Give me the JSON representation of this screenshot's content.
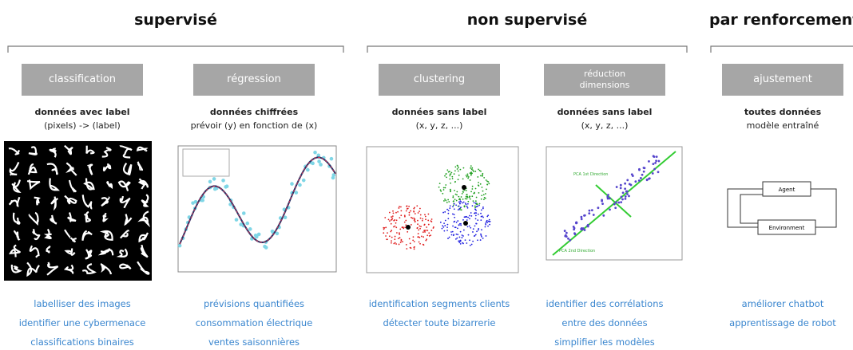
{
  "groups": [
    {
      "title": "supervisé",
      "columns": [
        {
          "button": "classification",
          "heading": "données avec label",
          "subheading": "(pixels) -> (label)",
          "uses": [
            "labelliser des images",
            "identifier une cybermenace",
            "classifications binaires"
          ]
        },
        {
          "button": "régression",
          "heading": "données chiffrées",
          "subheading": "prévoir (y) en fonction de (x)",
          "uses": [
            "prévisions quantifiées",
            "consommation électrique",
            "ventes saisonnières"
          ]
        }
      ]
    },
    {
      "title": "non supervisé",
      "columns": [
        {
          "button": "clustering",
          "heading": "données sans label",
          "subheading": "(x, y, z, ...)",
          "uses": [
            "identification segments clients",
            "détecter toute bizarrerie"
          ]
        },
        {
          "button": "réduction dimensions",
          "heading": "données sans label",
          "subheading": "(x, y, z, ...)",
          "uses": [
            "identifier des corrélations",
            "entre des données",
            "simplifier les modèles"
          ]
        }
      ]
    },
    {
      "title": "par renforcement",
      "columns": [
        {
          "button": "ajustement",
          "heading": "toutes données",
          "subheading": "modèle entraîné",
          "uses": [
            "améliorer chatbot",
            "apprentissage de robot"
          ]
        }
      ]
    }
  ],
  "figures": {
    "pca_labels": [
      "PCA 1st Direction",
      "PCA 2nd Direction"
    ],
    "rl_labels": [
      "Agent",
      "Environment"
    ]
  }
}
